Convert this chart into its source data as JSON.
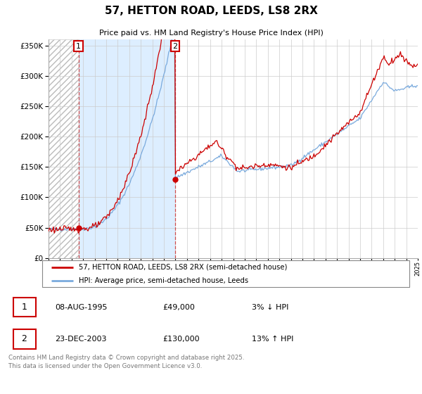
{
  "title": "57, HETTON ROAD, LEEDS, LS8 2RX",
  "subtitle": "Price paid vs. HM Land Registry's House Price Index (HPI)",
  "ytick_values": [
    0,
    50000,
    100000,
    150000,
    200000,
    250000,
    300000,
    350000
  ],
  "ylim": [
    0,
    360000
  ],
  "x_start_year": 1993,
  "x_end_year": 2025,
  "sale1": {
    "date_num": 1995.6,
    "price": 49000,
    "label": "1",
    "date_str": "08-AUG-1995",
    "price_str": "£49,000",
    "hpi_str": "3% ↓ HPI"
  },
  "sale2": {
    "date_num": 2003.97,
    "price": 130000,
    "label": "2",
    "date_str": "23-DEC-2003",
    "price_str": "£130,000",
    "hpi_str": "13% ↑ HPI"
  },
  "red_line_color": "#cc0000",
  "blue_line_color": "#7aaadd",
  "dashed_red_color": "#cc3333",
  "hatch_fill_color": "#d8d8d8",
  "blue_fill_color": "#ddeeff",
  "legend_line1": "57, HETTON ROAD, LEEDS, LS8 2RX (semi-detached house)",
  "legend_line2": "HPI: Average price, semi-detached house, Leeds",
  "footer": "Contains HM Land Registry data © Crown copyright and database right 2025.\nThis data is licensed under the Open Government Licence v3.0."
}
